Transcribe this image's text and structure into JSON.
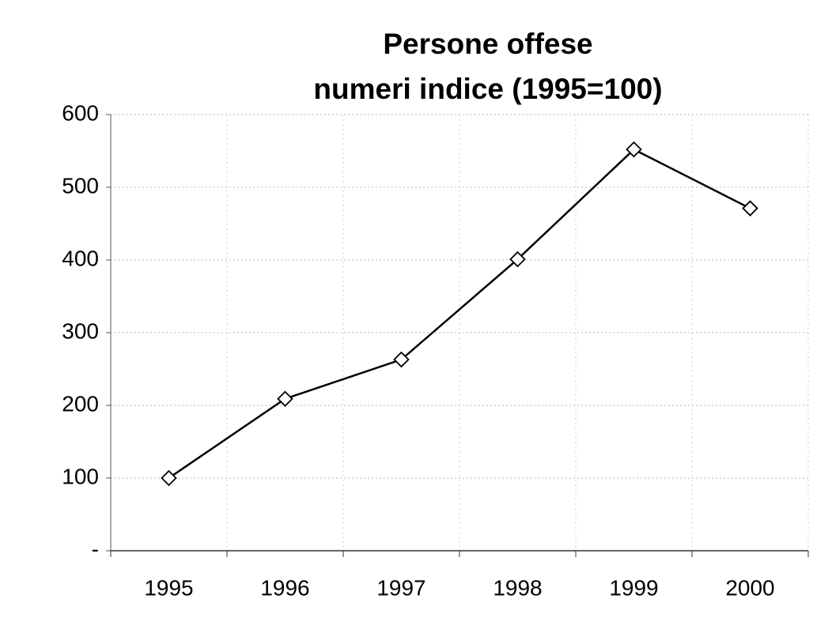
{
  "chart_data": {
    "type": "line",
    "title": "Persone offese",
    "subtitle": "numeri indice (1995=100)",
    "categories": [
      "1995",
      "1996",
      "1997",
      "1998",
      "1999",
      "2000"
    ],
    "values": [
      100,
      209,
      263,
      401,
      552,
      471
    ],
    "color": "#000000",
    "marker": "diamond",
    "ylim": [
      0,
      600
    ],
    "yticks": [
      {
        "value": 0,
        "label": "-"
      },
      100,
      200,
      300,
      400,
      500,
      600
    ],
    "grid": true
  }
}
